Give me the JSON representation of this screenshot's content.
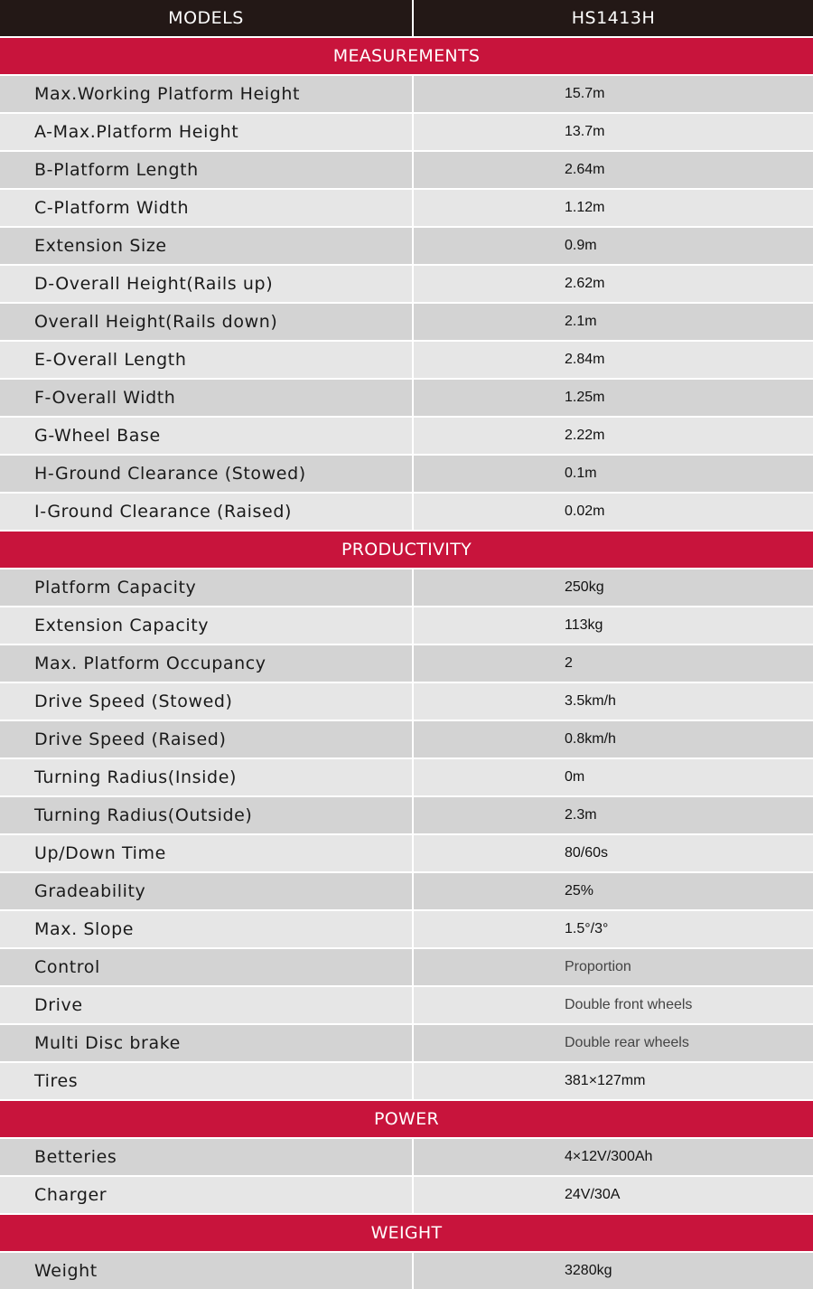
{
  "header": {
    "models_label": "MODELS",
    "model_name": "HS1413H"
  },
  "colors": {
    "header_bg": "#231816",
    "section_bg": "#c8143c",
    "row_dark": "#d3d3d3",
    "row_light": "#e6e6e6"
  },
  "sections": [
    {
      "title": "MEASUREMENTS",
      "rows": [
        {
          "label": "Max.Working Platform Height",
          "value": "15.7m"
        },
        {
          "label": "A-Max.Platform Height",
          "value": "13.7m"
        },
        {
          "label": "B-Platform Length",
          "value": "2.64m"
        },
        {
          "label": "C-Platform Width",
          "value": "1.12m"
        },
        {
          "label": "Extension Size",
          "value": "0.9m"
        },
        {
          "label": "D-Overall Height(Rails up)",
          "value": "2.62m"
        },
        {
          "label": "Overall Height(Rails down)",
          "value": "2.1m"
        },
        {
          "label": "E-Overall Length",
          "value": "2.84m"
        },
        {
          "label": "F-Overall Width",
          "value": "1.25m"
        },
        {
          "label": "G-Wheel Base",
          "value": "2.22m"
        },
        {
          "label": "H-Ground Clearance (Stowed)",
          "value": "0.1m"
        },
        {
          "label": "I-Ground Clearance (Raised)",
          "value": "0.02m"
        }
      ]
    },
    {
      "title": "PRODUCTIVITY",
      "rows": [
        {
          "label": "Platform Capacity",
          "value": "250kg"
        },
        {
          "label": "Extension Capacity",
          "value": "113kg"
        },
        {
          "label": "Max. Platform Occupancy",
          "value": "2"
        },
        {
          "label": "Drive Speed (Stowed)",
          "value": "3.5km/h"
        },
        {
          "label": "Drive Speed (Raised)",
          "value": "0.8km/h"
        },
        {
          "label": "Turning Radius(Inside)",
          "value": "0m"
        },
        {
          "label": "Turning Radius(Outside)",
          "value": "2.3m"
        },
        {
          "label": "Up/Down Time",
          "value": "80/60s"
        },
        {
          "label": "Gradeability",
          "value": "25%"
        },
        {
          "label": "Max. Slope",
          "value": "1.5°/3°"
        },
        {
          "label": "Control",
          "value": "Proportion"
        },
        {
          "label": "Drive",
          "value": "Double front wheels"
        },
        {
          "label": "Multi Disc brake",
          "value": "Double rear wheels"
        },
        {
          "label": "Tires",
          "value": "381×127mm"
        }
      ]
    },
    {
      "title": "POWER",
      "rows": [
        {
          "label": "Betteries",
          "value": "4×12V/300Ah"
        },
        {
          "label": "Charger",
          "value": "24V/30A"
        }
      ]
    },
    {
      "title": "WEIGHT",
      "rows": [
        {
          "label": "Weight",
          "value": "3280kg"
        }
      ]
    }
  ]
}
